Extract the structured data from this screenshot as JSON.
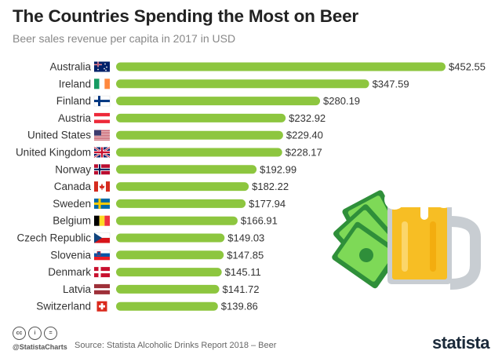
{
  "header": {
    "title": "The Countries Spending the Most on Beer",
    "subtitle": "Beer sales revenue per capita in 2017 in USD"
  },
  "footer": {
    "handle": "@StatistaCharts",
    "source": "Source: Statista Alcoholic Drinks Report 2018 – Beer",
    "brand": "statista",
    "license_icons": [
      "cc",
      "i",
      "="
    ]
  },
  "colors": {
    "bar": "#8dc63f",
    "money": "#2f8f3a",
    "beer": "#f7be24",
    "foam": "#ffffff",
    "brand": "#1b2a3a"
  },
  "chart_data": {
    "type": "bar",
    "orientation": "horizontal",
    "categories": [
      "Australia",
      "Ireland",
      "Finland",
      "Austria",
      "United States",
      "United Kingdom",
      "Norway",
      "Canada",
      "Sweden",
      "Belgium",
      "Czech Republic",
      "Slovenia",
      "Denmark",
      "Latvia",
      "Switzerland"
    ],
    "values": [
      452.55,
      347.59,
      280.19,
      232.92,
      229.4,
      228.17,
      192.99,
      182.22,
      177.94,
      166.91,
      149.03,
      147.85,
      145.11,
      141.72,
      139.86
    ],
    "value_labels": [
      "$452.55",
      "$347.59",
      "$280.19",
      "$232.92",
      "$229.40",
      "$228.17",
      "$192.99",
      "$182.22",
      "$177.94",
      "$166.91",
      "$149.03",
      "$147.85",
      "$145.11",
      "$141.72",
      "$139.86"
    ],
    "flags": [
      "australia-flag-icon",
      "ireland-flag-icon",
      "finland-flag-icon",
      "austria-flag-icon",
      "united-states-flag-icon",
      "united-kingdom-flag-icon",
      "norway-flag-icon",
      "canada-flag-icon",
      "sweden-flag-icon",
      "belgium-flag-icon",
      "czech-republic-flag-icon",
      "slovenia-flag-icon",
      "denmark-flag-icon",
      "latvia-flag-icon",
      "switzerland-flag-icon"
    ],
    "title": "The Countries Spending the Most on Beer",
    "subtitle": "Beer sales revenue per capita in 2017 in USD",
    "xlabel": "",
    "ylabel": "",
    "grid": false,
    "legend": "none"
  }
}
